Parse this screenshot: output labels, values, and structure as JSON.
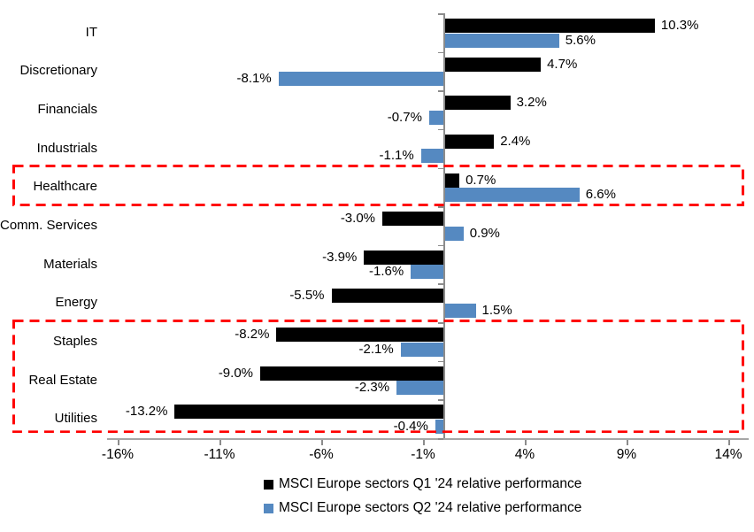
{
  "chart_data": {
    "type": "bar",
    "orientation": "horizontal",
    "title": "",
    "xlabel": "",
    "ylabel": "",
    "grid": false,
    "legend_position": "bottom",
    "categories": [
      "IT",
      "Discretionary",
      "Financials",
      "Industrials",
      "Healthcare",
      "Comm. Services",
      "Materials",
      "Energy",
      "Staples",
      "Real Estate",
      "Utilities"
    ],
    "series": [
      {
        "name": "MSCI Europe sectors Q1 '24 relative performance",
        "color": "#000000",
        "values": [
          10.3,
          4.7,
          3.2,
          2.4,
          0.7,
          -3.0,
          -3.9,
          -5.5,
          -8.2,
          -9.0,
          -13.2
        ]
      },
      {
        "name": "MSCI Europe sectors Q2 '24 relative performance",
        "color": "#5589C1",
        "values": [
          5.6,
          -8.1,
          -0.7,
          -1.1,
          6.6,
          0.9,
          -1.6,
          1.5,
          -2.1,
          -2.3,
          -0.4
        ]
      }
    ],
    "value_label_suffix": "%",
    "xlim": [
      -16.5,
      15
    ],
    "xticks": {
      "values": [
        -16,
        -11,
        -6,
        -1,
        4,
        9,
        14
      ],
      "labels": [
        "-16%",
        "-11%",
        "-6%",
        "-1%",
        "4%",
        "9%",
        "14%"
      ]
    },
    "highlights": [
      {
        "label": "Healthcare",
        "categories": [
          "Healthcare"
        ],
        "color": "#FF0000"
      },
      {
        "label": "Staples / Real Estate / Utilities",
        "categories": [
          "Staples",
          "Real Estate",
          "Utilities"
        ],
        "color": "#FF0000"
      }
    ],
    "axis_color": "#8c8c8c"
  }
}
